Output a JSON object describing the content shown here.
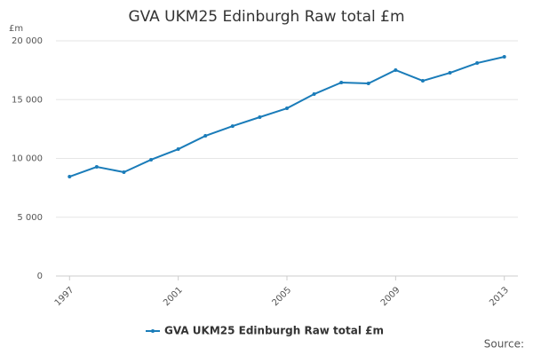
{
  "chart_data": {
    "type": "line",
    "title": "GVA UKM25 Edinburgh Raw total £m",
    "y_label": "£m",
    "source": "Source:",
    "x": [
      1997,
      1998,
      1999,
      2000,
      2001,
      2002,
      2003,
      2004,
      2005,
      2006,
      2007,
      2008,
      2009,
      2010,
      2011,
      2012,
      2013
    ],
    "series": [
      {
        "name": "GVA UKM25 Edinburgh Raw total £m",
        "color": "#1a7cb9",
        "values": [
          8450,
          9280,
          8830,
          9890,
          10790,
          11920,
          12750,
          13510,
          14260,
          15470,
          16450,
          16380,
          17510,
          16600,
          17280,
          18110,
          18640
        ]
      }
    ],
    "xlim": [
      1996.5,
      2013.5
    ],
    "xticks": [
      1997,
      2001,
      2005,
      2009,
      2013
    ],
    "ylim": [
      0,
      20000
    ],
    "yticks": [
      0,
      {
        "value": 5000,
        "label": "5 000"
      },
      {
        "value": 10000,
        "label": "10 000"
      },
      {
        "value": 15000,
        "label": "15 000"
      },
      {
        "value": 20000,
        "label": "20 000"
      }
    ],
    "grid": true,
    "legend": "bottom"
  }
}
